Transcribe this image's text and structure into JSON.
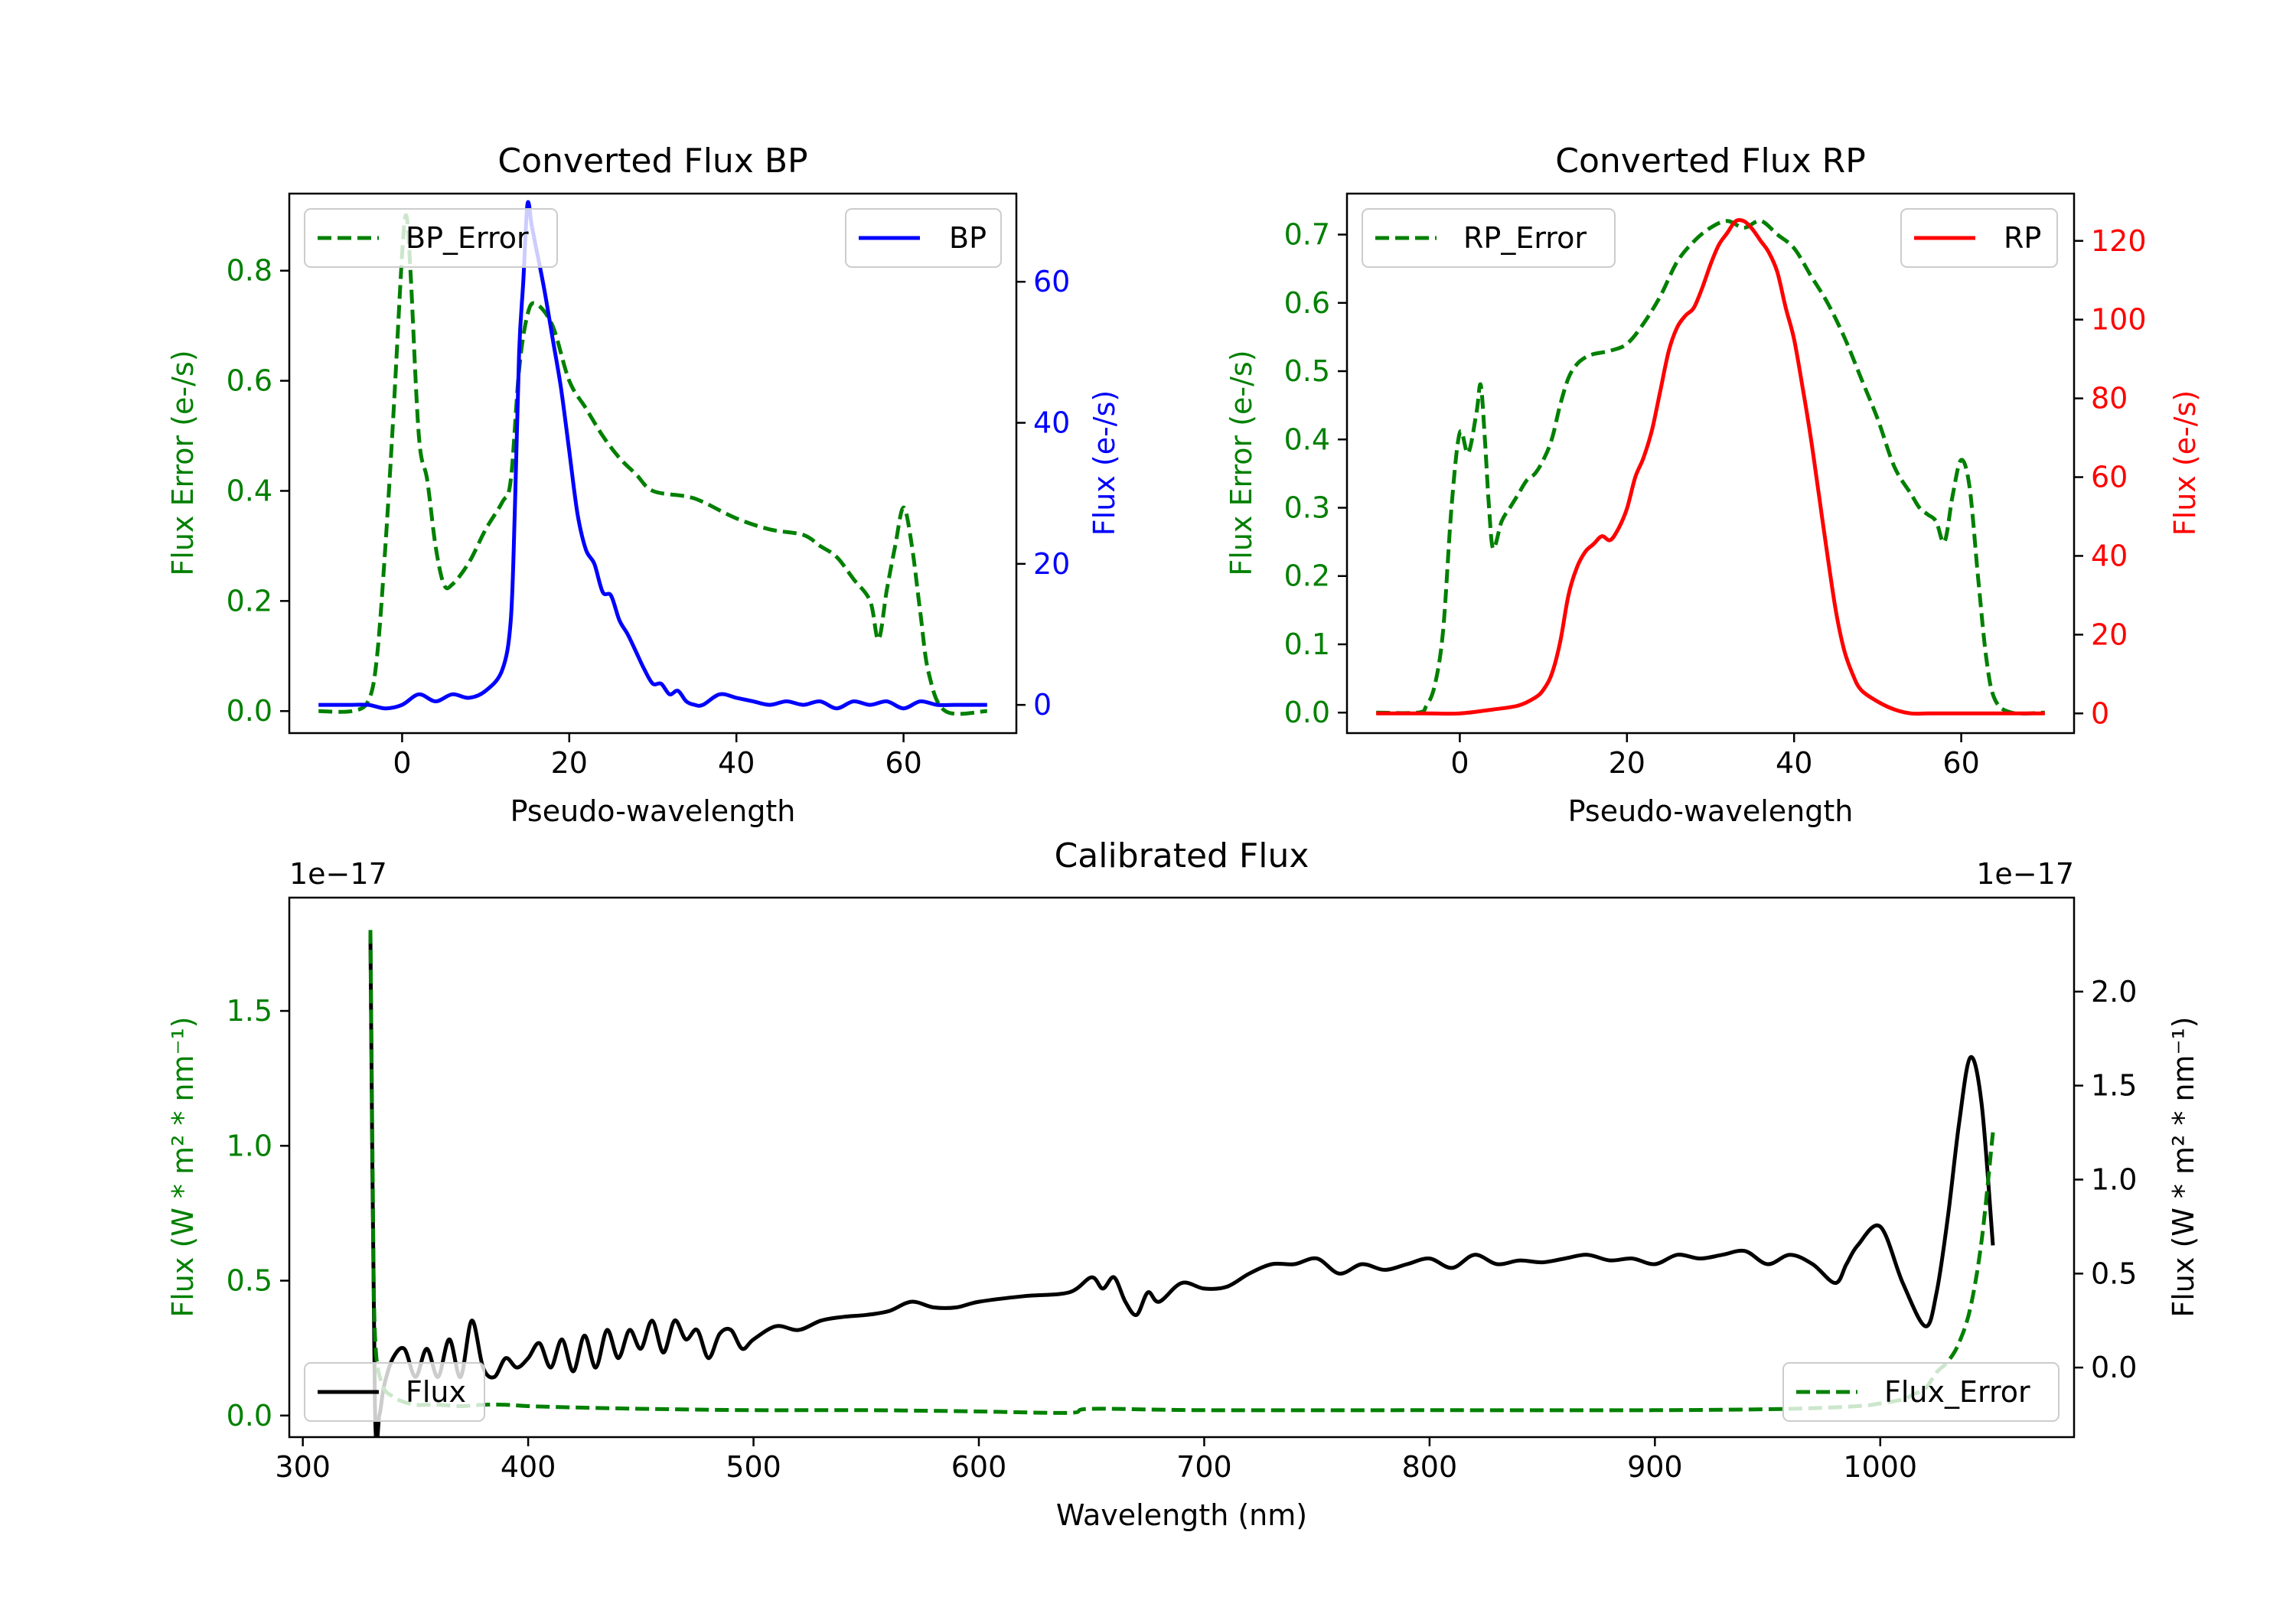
{
  "colors": {
    "green": "#008000",
    "blue": "#0000ff",
    "red": "#ff0000",
    "black": "#000000"
  },
  "chart_data": [
    {
      "id": "bp",
      "type": "line",
      "title": "Converted Flux BP",
      "xlabel": "Pseudo-wavelength",
      "xlim": [
        -13.5,
        73.5
      ],
      "xticks": [
        0,
        20,
        40,
        60
      ],
      "left_axis": {
        "label": "Flux Error (e-/s)",
        "color": "green",
        "ylim": [
          -0.04,
          0.94
        ],
        "ticks": [
          0.0,
          0.2,
          0.4,
          0.6,
          0.8
        ],
        "tick_labels": [
          "0.0",
          "0.2",
          "0.4",
          "0.6",
          "0.8"
        ]
      },
      "right_axis": {
        "label": "Flux (e-/s)",
        "color": "blue",
        "ylim": [
          -4,
          72.5
        ],
        "ticks": [
          0,
          20,
          40,
          60
        ],
        "tick_labels": [
          "0",
          "20",
          "40",
          "60"
        ]
      },
      "series": [
        {
          "name": "BP_Error",
          "axis": "left",
          "style": "dashed",
          "color": "green",
          "legend": "top-left",
          "x": [
            -10,
            -6,
            -4,
            -3,
            -2,
            -1,
            0,
            0.5,
            1,
            2,
            3,
            4,
            5,
            6,
            8,
            10,
            12,
            13,
            14,
            15,
            16,
            18,
            20,
            22,
            24,
            26,
            28,
            30,
            34,
            36,
            40,
            44,
            48,
            50,
            52,
            54,
            56,
            57,
            58,
            59,
            60,
            61,
            62,
            63,
            65,
            70
          ],
          "y": [
            0.0,
            0.0,
            0.02,
            0.1,
            0.3,
            0.55,
            0.83,
            0.9,
            0.8,
            0.5,
            0.42,
            0.3,
            0.23,
            0.23,
            0.27,
            0.33,
            0.38,
            0.42,
            0.62,
            0.72,
            0.74,
            0.7,
            0.6,
            0.55,
            0.5,
            0.46,
            0.43,
            0.4,
            0.39,
            0.38,
            0.35,
            0.33,
            0.32,
            0.3,
            0.28,
            0.24,
            0.2,
            0.13,
            0.22,
            0.3,
            0.37,
            0.3,
            0.18,
            0.07,
            0.0,
            0.0
          ]
        },
        {
          "name": "BP",
          "axis": "right",
          "style": "solid",
          "color": "blue",
          "legend": "top-right",
          "x": [
            -10,
            -6,
            -4,
            -2,
            0,
            2,
            4,
            6,
            8,
            10,
            12,
            13,
            13.5,
            14,
            14.5,
            15,
            15.5,
            16,
            17,
            18,
            19,
            20,
            21,
            22,
            23,
            24,
            25,
            26,
            27,
            28,
            29,
            30,
            31,
            32,
            33,
            34,
            35,
            36,
            38,
            40,
            42,
            44,
            46,
            48,
            50,
            52,
            54,
            56,
            58,
            60,
            62,
            64,
            66,
            70
          ],
          "y": [
            0,
            0,
            0,
            -0.5,
            0,
            1.5,
            0.5,
            1.5,
            1,
            2,
            5,
            12,
            28,
            50,
            60,
            71,
            68,
            65,
            59,
            52,
            45,
            36,
            27,
            22,
            20,
            16,
            15.5,
            12,
            10,
            7.5,
            5,
            3,
            3,
            1.5,
            2,
            0.5,
            0,
            0,
            1.5,
            1,
            0.5,
            0,
            0.5,
            0,
            0.5,
            -0.5,
            0.5,
            0,
            0.5,
            -0.5,
            0.5,
            0,
            0,
            0
          ]
        }
      ]
    },
    {
      "id": "rp",
      "type": "line",
      "title": "Converted Flux RP",
      "xlabel": "Pseudo-wavelength",
      "xlim": [
        -13.5,
        73.5
      ],
      "xticks": [
        0,
        20,
        40,
        60
      ],
      "left_axis": {
        "label": "Flux Error (e-/s)",
        "color": "green",
        "ylim": [
          -0.03,
          0.76
        ],
        "ticks": [
          0.0,
          0.1,
          0.2,
          0.3,
          0.4,
          0.5,
          0.6,
          0.7
        ],
        "tick_labels": [
          "0.0",
          "0.1",
          "0.2",
          "0.3",
          "0.4",
          "0.5",
          "0.6",
          "0.7"
        ]
      },
      "right_axis": {
        "label": "Flux (e-/s)",
        "color": "red",
        "ylim": [
          -5,
          132
        ],
        "ticks": [
          0,
          20,
          40,
          60,
          80,
          100,
          120
        ],
        "tick_labels": [
          "0",
          "20",
          "40",
          "60",
          "80",
          "100",
          "120"
        ]
      },
      "series": [
        {
          "name": "RP_Error",
          "axis": "left",
          "style": "dashed",
          "color": "green",
          "legend": "top-left",
          "x": [
            -10,
            -5,
            -4,
            -3,
            -2,
            -1,
            0,
            1,
            2,
            2.5,
            3,
            3.5,
            4,
            5,
            6,
            7,
            8,
            9,
            10,
            11,
            12,
            13,
            14,
            15,
            16,
            18,
            20,
            22,
            24,
            26,
            28,
            30,
            32,
            34,
            36,
            38,
            40,
            42,
            44,
            46,
            48,
            50,
            52,
            54,
            55,
            56,
            57,
            58,
            59,
            60,
            61,
            62,
            63,
            64,
            66,
            70
          ],
          "y": [
            0.0,
            0.0,
            0.01,
            0.04,
            0.12,
            0.3,
            0.41,
            0.38,
            0.44,
            0.48,
            0.4,
            0.3,
            0.24,
            0.28,
            0.3,
            0.32,
            0.34,
            0.35,
            0.37,
            0.4,
            0.45,
            0.49,
            0.51,
            0.52,
            0.525,
            0.53,
            0.54,
            0.57,
            0.61,
            0.66,
            0.69,
            0.71,
            0.72,
            0.71,
            0.72,
            0.7,
            0.68,
            0.64,
            0.6,
            0.55,
            0.49,
            0.43,
            0.36,
            0.32,
            0.3,
            0.29,
            0.28,
            0.25,
            0.32,
            0.37,
            0.33,
            0.2,
            0.08,
            0.02,
            0.0,
            0.0
          ]
        },
        {
          "name": "RP",
          "axis": "right",
          "style": "solid",
          "color": "red",
          "legend": "top-right",
          "x": [
            -10,
            -4,
            0,
            4,
            7,
            9,
            10,
            11,
            12,
            13,
            14,
            15,
            16,
            17,
            18,
            19,
            20,
            21,
            22,
            23,
            24,
            25,
            26,
            27,
            28,
            29,
            30,
            31,
            32,
            33,
            34,
            35,
            36,
            37,
            38,
            39,
            40,
            41,
            42,
            43,
            44,
            45,
            46,
            47,
            48,
            50,
            52,
            54,
            56,
            58,
            60,
            65,
            70
          ],
          "y": [
            0,
            0,
            0,
            1,
            2,
            4,
            6,
            10,
            18,
            30,
            37,
            41,
            43,
            45,
            44,
            47,
            52,
            60,
            65,
            72,
            82,
            92,
            98,
            101,
            103,
            108,
            114,
            119,
            122,
            125,
            125,
            123,
            120,
            117,
            112,
            103,
            95,
            83,
            70,
            55,
            40,
            26,
            16,
            10,
            6,
            3,
            1,
            0,
            0,
            0,
            0,
            0,
            0
          ]
        }
      ]
    },
    {
      "id": "cal",
      "type": "line",
      "title": "Calibrated Flux",
      "xlabel": "Wavelength (nm)",
      "xlim": [
        294,
        1086
      ],
      "xticks": [
        300,
        400,
        500,
        600,
        700,
        800,
        900,
        1000
      ],
      "left_axis": {
        "label": "Flux (W * m² * nm⁻¹)",
        "color": "green",
        "offset_label": "1e−17",
        "ylim": [
          -0.08,
          1.92
        ],
        "ticks": [
          0.0,
          0.5,
          1.0,
          1.5
        ],
        "tick_labels": [
          "0.0",
          "0.5",
          "1.0",
          "1.5"
        ]
      },
      "right_axis": {
        "label": "Flux (W * m² * nm⁻¹)",
        "color": "black",
        "offset_label": "1e−17",
        "ylim": [
          -0.37,
          2.5
        ],
        "ticks": [
          0.0,
          0.5,
          1.0,
          1.5,
          2.0
        ],
        "tick_labels": [
          "0.0",
          "0.5",
          "1.0",
          "1.5",
          "2.0"
        ]
      },
      "series": [
        {
          "name": "Flux",
          "axis": "right",
          "style": "solid",
          "color": "black",
          "legend": "bottom-left",
          "x": [
            330,
            332,
            334,
            336,
            340,
            345,
            350,
            355,
            360,
            365,
            370,
            375,
            380,
            385,
            390,
            395,
            400,
            405,
            410,
            415,
            420,
            425,
            430,
            435,
            440,
            445,
            450,
            455,
            460,
            465,
            470,
            475,
            480,
            485,
            490,
            495,
            500,
            510,
            520,
            530,
            540,
            550,
            560,
            570,
            580,
            590,
            600,
            620,
            640,
            650,
            655,
            660,
            665,
            670,
            675,
            680,
            690,
            700,
            710,
            720,
            730,
            740,
            750,
            760,
            770,
            780,
            790,
            800,
            810,
            820,
            830,
            840,
            850,
            860,
            870,
            880,
            890,
            900,
            910,
            920,
            930,
            940,
            950,
            960,
            970,
            980,
            985,
            990,
            1000,
            1010,
            1020,
            1025,
            1030,
            1035,
            1040,
            1045,
            1050
          ],
          "y": [
            2.3,
            -0.2,
            -0.25,
            -0.1,
            0.05,
            0.1,
            -0.05,
            0.1,
            -0.05,
            0.15,
            -0.05,
            0.25,
            0.0,
            -0.05,
            0.05,
            0.0,
            0.05,
            0.13,
            0.0,
            0.15,
            -0.02,
            0.17,
            0.0,
            0.2,
            0.05,
            0.2,
            0.1,
            0.25,
            0.08,
            0.25,
            0.15,
            0.2,
            0.05,
            0.18,
            0.2,
            0.1,
            0.15,
            0.22,
            0.2,
            0.25,
            0.27,
            0.28,
            0.3,
            0.35,
            0.32,
            0.32,
            0.35,
            0.38,
            0.4,
            0.48,
            0.42,
            0.48,
            0.35,
            0.28,
            0.4,
            0.35,
            0.45,
            0.42,
            0.43,
            0.5,
            0.55,
            0.55,
            0.58,
            0.5,
            0.55,
            0.52,
            0.55,
            0.58,
            0.53,
            0.6,
            0.55,
            0.57,
            0.56,
            0.58,
            0.6,
            0.57,
            0.58,
            0.55,
            0.6,
            0.58,
            0.6,
            0.62,
            0.55,
            0.6,
            0.55,
            0.45,
            0.55,
            0.65,
            0.75,
            0.45,
            0.22,
            0.4,
            0.8,
            1.3,
            1.65,
            1.4,
            0.65
          ]
        },
        {
          "name": "Flux_Error",
          "axis": "left",
          "style": "dashed",
          "color": "green",
          "legend": "bottom-right",
          "x": [
            330,
            331,
            332,
            335,
            340,
            345,
            350,
            355,
            360,
            370,
            380,
            390,
            400,
            420,
            450,
            500,
            550,
            600,
            640,
            650,
            700,
            800,
            900,
            960,
            990,
            1000,
            1010,
            1015,
            1020,
            1025,
            1030,
            1035,
            1040,
            1045,
            1050
          ],
          "y": [
            1.8,
            0.9,
            0.3,
            0.12,
            0.07,
            0.05,
            0.04,
            0.04,
            0.04,
            0.035,
            0.04,
            0.04,
            0.035,
            0.03,
            0.025,
            0.02,
            0.02,
            0.015,
            0.01,
            0.025,
            0.02,
            0.02,
            0.02,
            0.025,
            0.035,
            0.045,
            0.06,
            0.08,
            0.1,
            0.16,
            0.2,
            0.27,
            0.4,
            0.65,
            1.05
          ]
        }
      ]
    }
  ]
}
